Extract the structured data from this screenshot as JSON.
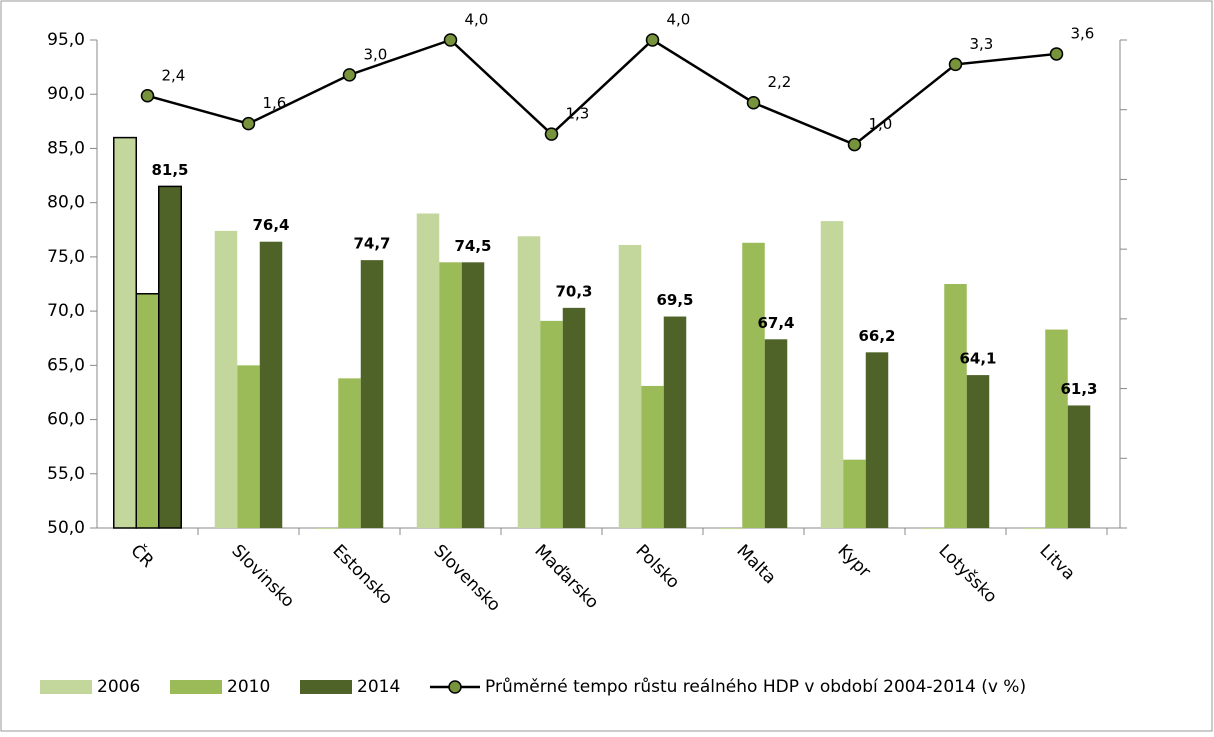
{
  "chart_data": {
    "type": "bar-line",
    "categories": [
      "ČR",
      "Slovinsko",
      "Estonsko",
      "Slovensko",
      "Maďarsko",
      "Polsko",
      "Malta",
      "Kypr",
      "Lotyšsko",
      "Litva"
    ],
    "series": [
      {
        "name": "2006",
        "color": "#c3d69b",
        "values": [
          86,
          77.4,
          49.9,
          79,
          76.9,
          76.1,
          49.9,
          78.3,
          49.9,
          49.9
        ]
      },
      {
        "name": "2010",
        "color": "#9bbb59",
        "values": [
          71.6,
          65,
          63.8,
          74.5,
          69.1,
          63.1,
          76.3,
          56.3,
          72.5,
          68.3
        ]
      },
      {
        "name": "2014",
        "color": "#4f6228",
        "values": [
          81.5,
          76.4,
          74.7,
          74.5,
          70.3,
          69.5,
          67.4,
          66.2,
          64.1,
          61.3
        ],
        "value_labels": [
          "81,5",
          "76,4",
          "74,7",
          "74,5",
          "70,3",
          "69,5",
          "67,4",
          "66,2",
          "64,1",
          "61,3"
        ]
      },
      {
        "name": "Průměrné tempo růstu reálného HDP v období 2004-2014 (v %)",
        "color": "#77933c",
        "type": "line",
        "axis": "y2",
        "values": [
          2.4,
          1.6,
          3.0,
          4.0,
          1.3,
          4.0,
          2.2,
          1.0,
          3.3,
          3.6
        ],
        "value_labels": [
          "2,4",
          "1,6",
          "3,0",
          "4,0",
          "1,3",
          "4,0",
          "2,2",
          "1,0",
          "3,3",
          "3,6"
        ]
      }
    ],
    "ylim": [
      50,
      95
    ],
    "yticks": [
      {
        "value": 50,
        "label": "50,0"
      },
      {
        "value": 55,
        "label": "55,0"
      },
      {
        "value": 60,
        "label": "60,0"
      },
      {
        "value": 65,
        "label": "65,0"
      },
      {
        "value": 70,
        "label": "70,0"
      },
      {
        "value": 75,
        "label": "75,0"
      },
      {
        "value": 80,
        "label": "80,0"
      },
      {
        "value": 85,
        "label": "85,0"
      },
      {
        "value": 90,
        "label": "90,0"
      },
      {
        "value": 95,
        "label": "95,0"
      }
    ],
    "y2lim": [
      -10,
      4
    ],
    "y2ticks": [
      -10,
      -8,
      -6,
      -4,
      -2,
      0,
      2,
      4
    ]
  }
}
